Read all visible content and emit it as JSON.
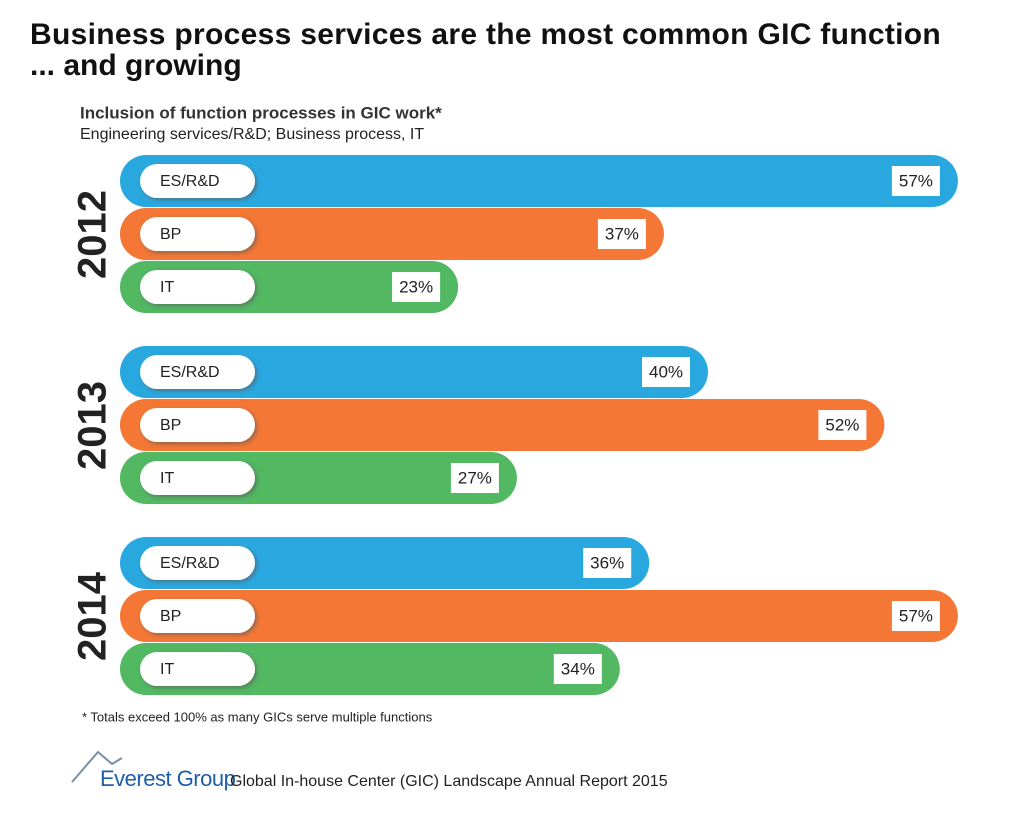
{
  "chart_data": {
    "type": "bar",
    "orientation": "horizontal",
    "title": [
      "Business process services are the most common GIC function",
      "... and growing"
    ],
    "subtitle": "Inclusion of function processes in GIC work*",
    "subtitle2": "Engineering services/R&D; Business process, IT",
    "categories": [
      "2012",
      "2013",
      "2014"
    ],
    "series": [
      {
        "name": "ES/R&D",
        "color": "#29a8e0",
        "values": [
          57,
          40,
          36
        ],
        "value_labels": [
          "57%",
          "40%",
          "36%"
        ]
      },
      {
        "name": "BP",
        "color": "#f47735",
        "values": [
          37,
          52,
          57
        ],
        "value_labels": [
          "37%",
          "52%",
          "57%"
        ]
      },
      {
        "name": "IT",
        "color": "#52b862",
        "values": [
          23,
          27,
          34
        ],
        "value_labels": [
          "23%",
          "27%",
          "34%"
        ]
      }
    ],
    "note": "* Totals exceed 100% as many GICs serve multiple functions",
    "footer": {
      "logo": "Everest Group",
      "text": "Global In-house Center (GIC) Landscape Annual Report 2015"
    }
  }
}
